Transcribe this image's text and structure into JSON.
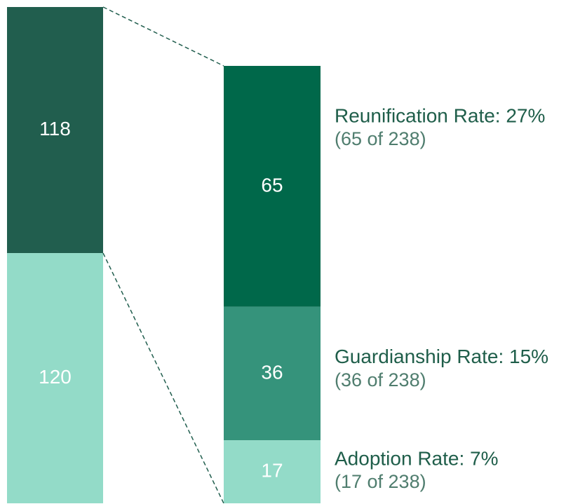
{
  "chart_data": {
    "type": "bar_of_bar",
    "bar1": {
      "values": [
        118,
        120
      ],
      "colors": [
        "#215e4e",
        "#93dbc8"
      ]
    },
    "bar2": {
      "values": [
        65,
        36,
        17
      ],
      "colors": [
        "#00684a",
        "#35937b",
        "#93dbc8"
      ]
    },
    "annotations": [
      {
        "title": "Reunification Rate: 27%",
        "detail": "(65 of 238)"
      },
      {
        "title": "Guardianship Rate: 15%",
        "detail": "(36 of 238)"
      },
      {
        "title": "Adoption Rate: 7%",
        "detail": "(17 of 238)"
      }
    ],
    "connector_color": "#215e4e"
  }
}
